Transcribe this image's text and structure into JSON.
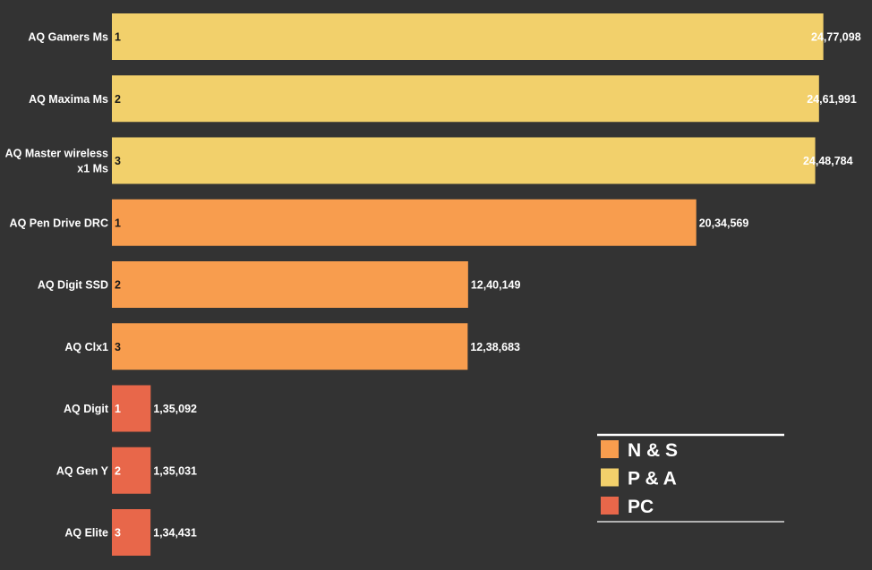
{
  "chart_data": {
    "type": "bar",
    "orientation": "horizontal",
    "title": "",
    "xlabel": "",
    "ylabel": "",
    "xlim": [
      0,
      2500000
    ],
    "grid": false,
    "legend_position": "bottom-right",
    "legend": [
      {
        "name": "N & S",
        "color": "#F89D4E"
      },
      {
        "name": "P & A",
        "color": "#F2D06B"
      },
      {
        "name": "PC",
        "color": "#E8674A"
      }
    ],
    "categories": [
      "AQ Gamers Ms",
      "AQ Maxima Ms",
      "AQ Master wireless x1 Ms",
      "AQ Pen Drive DRC",
      "AQ Digit SSD",
      "AQ Clx1",
      "AQ Digit",
      "AQ Gen Y",
      "AQ Elite"
    ],
    "category_lines": [
      [
        "AQ Gamers Ms"
      ],
      [
        "AQ Maxima Ms"
      ],
      [
        "AQ Master wireless",
        "x1 Ms"
      ],
      [
        "AQ Pen Drive DRC"
      ],
      [
        "AQ Digit SSD"
      ],
      [
        "AQ Clx1"
      ],
      [
        "AQ Digit"
      ],
      [
        "AQ Gen Y"
      ],
      [
        "AQ Elite"
      ]
    ],
    "values": [
      2477098,
      2461991,
      2448784,
      2034569,
      1240149,
      1238683,
      135092,
      135031,
      134431
    ],
    "value_labels": [
      "24,77,098",
      "24,61,991",
      "24,48,784",
      "20,34,569",
      "12,40,149",
      "12,38,683",
      "1,35,092",
      "1,35,031",
      "1,34,431"
    ],
    "ranks": [
      "1",
      "2",
      "3",
      "1",
      "2",
      "3",
      "1",
      "2",
      "3"
    ],
    "groups": [
      "P & A",
      "P & A",
      "P & A",
      "N & S",
      "N & S",
      "N & S",
      "PC",
      "PC",
      "PC"
    ]
  }
}
